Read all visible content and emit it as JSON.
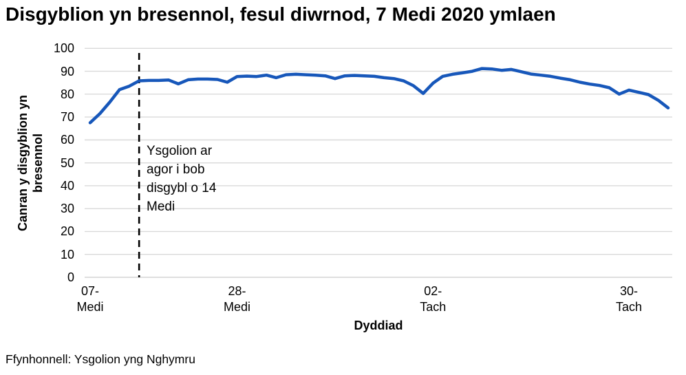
{
  "chart_data": {
    "type": "line",
    "title": "Disgyblion yn bresennol, fesul diwrnod, 7 Medi 2020 ymlaen",
    "xlabel": "Dyddiad",
    "ylabel": "Canran y disgyblion yn\nbresennol",
    "ylim": [
      0,
      100
    ],
    "y_ticks": [
      0,
      10,
      20,
      30,
      40,
      50,
      60,
      70,
      80,
      90,
      100
    ],
    "grid": "horizontal",
    "legend": "none",
    "line_color": "#1757BA",
    "gridline_color": "#D9D9D9",
    "annotation_line_color": "#000000",
    "x": [
      "07-Medi",
      "08-Medi",
      "09-Medi",
      "10-Medi",
      "11-Medi",
      "14-Medi",
      "15-Medi",
      "16-Medi",
      "17-Medi",
      "18-Medi",
      "21-Medi",
      "22-Medi",
      "23-Medi",
      "24-Medi",
      "25-Medi",
      "28-Medi",
      "29-Medi",
      "30-Medi",
      "01-Hyd",
      "02-Hyd",
      "05-Hyd",
      "06-Hyd",
      "07-Hyd",
      "08-Hyd",
      "09-Hyd",
      "12-Hyd",
      "13-Hyd",
      "14-Hyd",
      "15-Hyd",
      "16-Hyd",
      "19-Hyd",
      "20-Hyd",
      "21-Hyd",
      "22-Hyd",
      "23-Hyd",
      "02-Tach",
      "03-Tach",
      "04-Tach",
      "05-Tach",
      "06-Tach",
      "09-Tach",
      "10-Tach",
      "11-Tach",
      "12-Tach",
      "13-Tach",
      "16-Tach",
      "17-Tach",
      "18-Tach",
      "19-Tach",
      "20-Tach",
      "23-Tach",
      "24-Tach",
      "25-Tach",
      "26-Tach",
      "27-Tach",
      "30-Tach",
      "01-Rhag",
      "02-Rhag",
      "03-Rhag",
      "04-Rhag"
    ],
    "values": [
      67.5,
      71.5,
      76.5,
      82.0,
      83.5,
      85.8,
      86.0,
      86.0,
      86.2,
      84.5,
      86.3,
      86.6,
      86.6,
      86.4,
      85.2,
      87.7,
      87.9,
      87.7,
      88.3,
      87.2,
      88.5,
      88.7,
      88.5,
      88.3,
      88.0,
      86.8,
      88.0,
      88.2,
      88.0,
      87.8,
      87.2,
      86.8,
      85.8,
      83.7,
      80.3,
      84.8,
      87.8,
      88.7,
      89.3,
      90.0,
      91.2,
      91.0,
      90.4,
      90.8,
      89.8,
      88.8,
      88.3,
      87.8,
      87.0,
      86.3,
      85.2,
      84.4,
      83.8,
      82.8,
      80.0,
      81.8,
      80.8,
      79.8,
      77.3,
      74.0
    ],
    "x_tick_labels": [
      {
        "index": 0,
        "label": "07-\nMedi"
      },
      {
        "index": 15,
        "label": "28-\nMedi"
      },
      {
        "index": 35,
        "label": "02-\nTach"
      },
      {
        "index": 55,
        "label": "30-\nTach"
      }
    ],
    "annotation": {
      "text": "Ysgolion ar\nagor i bob\ndisgybl o 14\nMedi",
      "day_index": 5,
      "style": "dashed-vertical-line"
    }
  },
  "footer": {
    "source": "Ffynhonnell: Ysgolion yng Nghymru"
  }
}
